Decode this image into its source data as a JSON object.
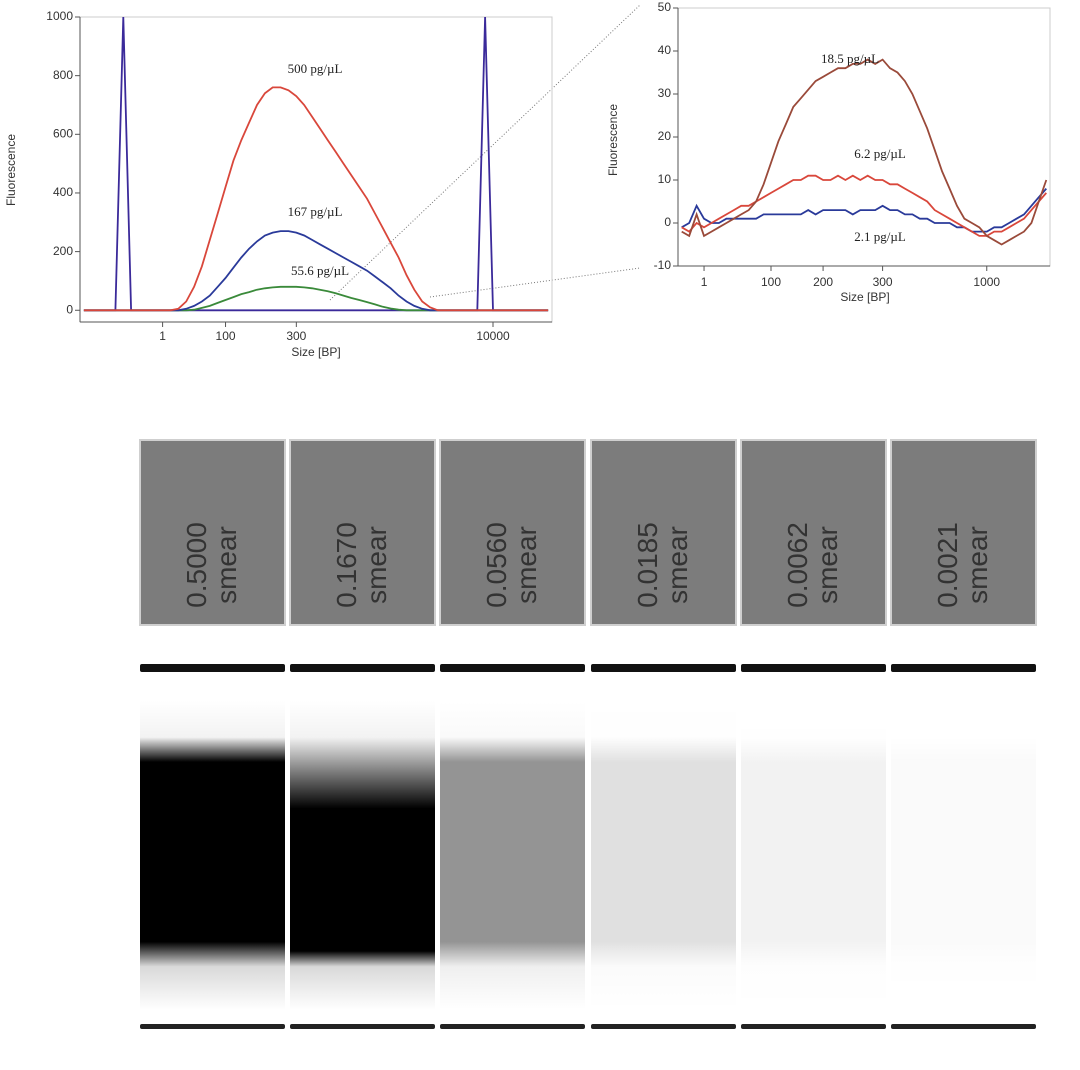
{
  "chart_data": [
    {
      "type": "line",
      "x_label": "Size [BP]",
      "y_label": "Fluorescence",
      "categories": [
        null,
        null,
        null,
        null,
        null,
        null,
        null,
        null,
        null,
        null,
        "1",
        null,
        null,
        null,
        null,
        null,
        null,
        null,
        "100",
        null,
        null,
        null,
        null,
        null,
        null,
        null,
        null,
        "300",
        null,
        null,
        null,
        null,
        null,
        null,
        null,
        null,
        null,
        null,
        null,
        null,
        null,
        null,
        null,
        null,
        null,
        null,
        null,
        null,
        null,
        null,
        null,
        null,
        "10000",
        null,
        null,
        null,
        null,
        null,
        null,
        null
      ],
      "ylim": [
        -40,
        1000
      ],
      "yticks": [
        0,
        200,
        400,
        600,
        800,
        1000
      ],
      "series": [
        {
          "name": "500 pg/µL",
          "color": "#d9473b",
          "values": [
            0,
            0,
            0,
            0,
            0,
            0,
            0,
            0,
            0,
            0,
            0,
            0,
            5,
            30,
            80,
            150,
            240,
            330,
            420,
            510,
            580,
            640,
            700,
            740,
            760,
            760,
            750,
            730,
            700,
            660,
            620,
            580,
            540,
            500,
            460,
            420,
            380,
            330,
            280,
            230,
            180,
            120,
            70,
            30,
            10,
            0,
            0,
            0,
            0,
            0,
            0,
            0,
            0,
            0,
            0,
            0,
            0,
            0,
            0,
            0
          ]
        },
        {
          "name": "167 pg/µL",
          "color": "#2a3a9a",
          "values": [
            0,
            0,
            0,
            0,
            0,
            0,
            0,
            0,
            0,
            0,
            0,
            0,
            0,
            5,
            15,
            30,
            50,
            80,
            110,
            145,
            180,
            210,
            235,
            255,
            265,
            270,
            270,
            265,
            255,
            240,
            225,
            210,
            195,
            180,
            165,
            150,
            135,
            115,
            95,
            75,
            50,
            30,
            15,
            5,
            0,
            0,
            0,
            0,
            0,
            0,
            0,
            0,
            0,
            0,
            0,
            0,
            0,
            0,
            0,
            0
          ]
        },
        {
          "name": "55.6 pg/µL",
          "color": "#3a8a3a",
          "values": [
            0,
            0,
            0,
            0,
            0,
            0,
            0,
            0,
            0,
            0,
            0,
            0,
            0,
            0,
            2,
            8,
            15,
            25,
            35,
            45,
            55,
            62,
            70,
            75,
            78,
            80,
            80,
            80,
            78,
            75,
            70,
            65,
            58,
            50,
            42,
            35,
            28,
            20,
            12,
            6,
            2,
            0,
            0,
            0,
            0,
            0,
            0,
            0,
            0,
            0,
            0,
            0,
            0,
            0,
            0,
            0,
            0,
            0,
            0,
            0
          ]
        },
        {
          "color": "#3b2a9a",
          "values": [
            0,
            0,
            0,
            0,
            0,
            1000,
            0,
            0,
            0,
            0,
            0,
            0,
            0,
            0,
            0,
            0,
            0,
            0,
            0,
            0,
            0,
            0,
            0,
            0,
            0,
            0,
            0,
            0,
            0,
            0,
            0,
            0,
            0,
            0,
            0,
            0,
            0,
            0,
            0,
            0,
            0,
            0,
            0,
            0,
            0,
            0,
            0,
            0,
            0,
            0,
            0,
            1000,
            0,
            0,
            0,
            0,
            0,
            0,
            0,
            0
          ]
        }
      ]
    },
    {
      "type": "line",
      "x_label": "Size [BP]",
      "y_label": "Fluorescence",
      "categories": [
        null,
        null,
        null,
        "1",
        null,
        null,
        null,
        null,
        null,
        null,
        null,
        null,
        "100",
        null,
        null,
        null,
        null,
        null,
        null,
        "200",
        null,
        null,
        null,
        null,
        null,
        null,
        null,
        "300",
        null,
        null,
        null,
        null,
        null,
        null,
        null,
        null,
        null,
        null,
        null,
        null,
        null,
        "1000",
        null,
        null,
        null,
        null,
        null,
        null,
        null,
        null
      ],
      "ylim": [
        -10,
        50
      ],
      "yticks": [
        -10,
        0,
        10,
        20,
        30,
        40,
        50
      ],
      "series": [
        {
          "name": "18.5 pg/µL",
          "color": "#9a4a3a",
          "values": [
            -2,
            -3,
            2,
            -3,
            -2,
            -1,
            0,
            1,
            2,
            3,
            5,
            9,
            14,
            19,
            23,
            27,
            29,
            31,
            33,
            34,
            35,
            36,
            36,
            37,
            37,
            38,
            37,
            38,
            36,
            35,
            33,
            30,
            26,
            22,
            17,
            12,
            8,
            4,
            1,
            0,
            -1,
            -3,
            -4,
            -5,
            -4,
            -3,
            -2,
            0,
            5,
            10
          ]
        },
        {
          "name": "6.2 pg/µL",
          "color": "#d9473b",
          "values": [
            -1,
            -2,
            0,
            -1,
            0,
            1,
            2,
            3,
            4,
            4,
            5,
            6,
            7,
            8,
            9,
            10,
            10,
            11,
            11,
            10,
            10,
            11,
            10,
            11,
            10,
            11,
            10,
            10,
            9,
            9,
            8,
            7,
            6,
            5,
            3,
            2,
            1,
            0,
            -1,
            -2,
            -3,
            -3,
            -2,
            -2,
            -1,
            0,
            1,
            3,
            5,
            7
          ]
        },
        {
          "name": "2.1 pg/µL",
          "color": "#2a3a9a",
          "values": [
            -1,
            0,
            4,
            1,
            0,
            0,
            1,
            1,
            1,
            1,
            1,
            2,
            2,
            2,
            2,
            2,
            2,
            3,
            2,
            3,
            3,
            3,
            3,
            2,
            3,
            3,
            3,
            4,
            3,
            3,
            2,
            2,
            1,
            1,
            0,
            0,
            0,
            -1,
            -1,
            -2,
            -2,
            -2,
            -1,
            -1,
            0,
            1,
            2,
            4,
            6,
            8
          ]
        }
      ]
    }
  ],
  "gel": {
    "lanes": [
      {
        "concentration": "0.5000",
        "type": "smear"
      },
      {
        "concentration": "0.1670",
        "type": "smear"
      },
      {
        "concentration": "0.0560",
        "type": "smear"
      },
      {
        "concentration": "0.0185",
        "type": "smear"
      },
      {
        "concentration": "0.0062",
        "type": "smear"
      },
      {
        "concentration": "0.0021",
        "type": "smear"
      }
    ]
  }
}
